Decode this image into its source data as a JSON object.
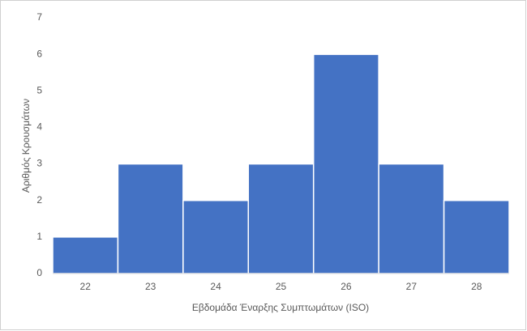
{
  "chart_data": {
    "type": "bar",
    "x_label": "Εβδομάδα Έναρξης Συμπτωμάτων (ISO)",
    "y_label": "Αριθμός Κρουσμάτων",
    "categories": [
      "22",
      "23",
      "24",
      "25",
      "26",
      "27",
      "28"
    ],
    "values": [
      1,
      3,
      2,
      3,
      6,
      3,
      2
    ],
    "color": "#4472c4",
    "ylim": [
      0,
      7
    ],
    "yticks": [
      0,
      1,
      2,
      3,
      4,
      5,
      6,
      7
    ],
    "grid": false
  }
}
